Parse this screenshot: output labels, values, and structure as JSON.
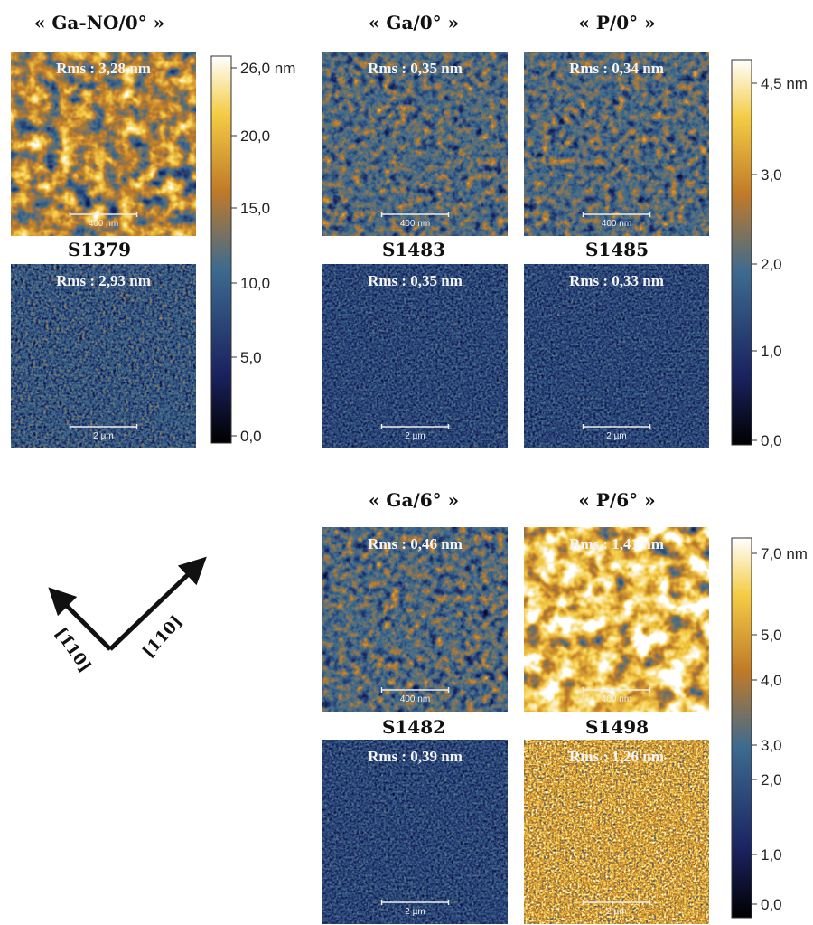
{
  "columns": [
    {
      "title": "« Ga-NO/0° »"
    },
    {
      "title": "« Ga/0° »"
    },
    {
      "title": "« P/0° »"
    },
    {
      "title": "« Ga/6° »"
    },
    {
      "title": "« P/6° »"
    }
  ],
  "images": [
    {
      "rms": "Rms : 3,28 nm",
      "scale": "400 nm"
    },
    {
      "rms": "Rms : 2,93 nm",
      "scale": "2 µm"
    },
    {
      "rms": "Rms : 0,35 nm",
      "scale": "400 nm"
    },
    {
      "rms": "Rms : 0,35 nm",
      "scale": "2 µm"
    },
    {
      "rms": "Rms : 0,34 nm",
      "scale": "400 nm"
    },
    {
      "rms": "Rms : 0,33 nm",
      "scale": "2 µm"
    },
    {
      "rms": "Rms : 0,46 nm",
      "scale": "400 nm"
    },
    {
      "rms": "Rms : 0,39 nm",
      "scale": "2 µm"
    },
    {
      "rms": "Rms : 1,41 nm",
      "scale": "400 nm"
    },
    {
      "rms": "Rms : 1,26 nm",
      "scale": "2 µm"
    }
  ],
  "samples": [
    {
      "name": "S1379"
    },
    {
      "name": "S1483"
    },
    {
      "name": "S1485"
    },
    {
      "name": "S1482"
    },
    {
      "name": "S1498"
    }
  ],
  "colorbars": [
    {
      "ticks": [
        "26,0 nm",
        "20,0",
        "15,0",
        "10,0",
        "5,0",
        "0,0"
      ]
    },
    {
      "ticks": [
        "4,5 nm",
        "3,0",
        "2,0",
        "1,0",
        "0,0"
      ]
    },
    {
      "ticks": [
        "7,0 nm",
        "5,0",
        "4,0",
        "3,0",
        "2,0",
        "1,0",
        "0,0"
      ]
    }
  ],
  "orientation": {
    "labels": [
      "[1̄10]",
      "[110]"
    ]
  }
}
